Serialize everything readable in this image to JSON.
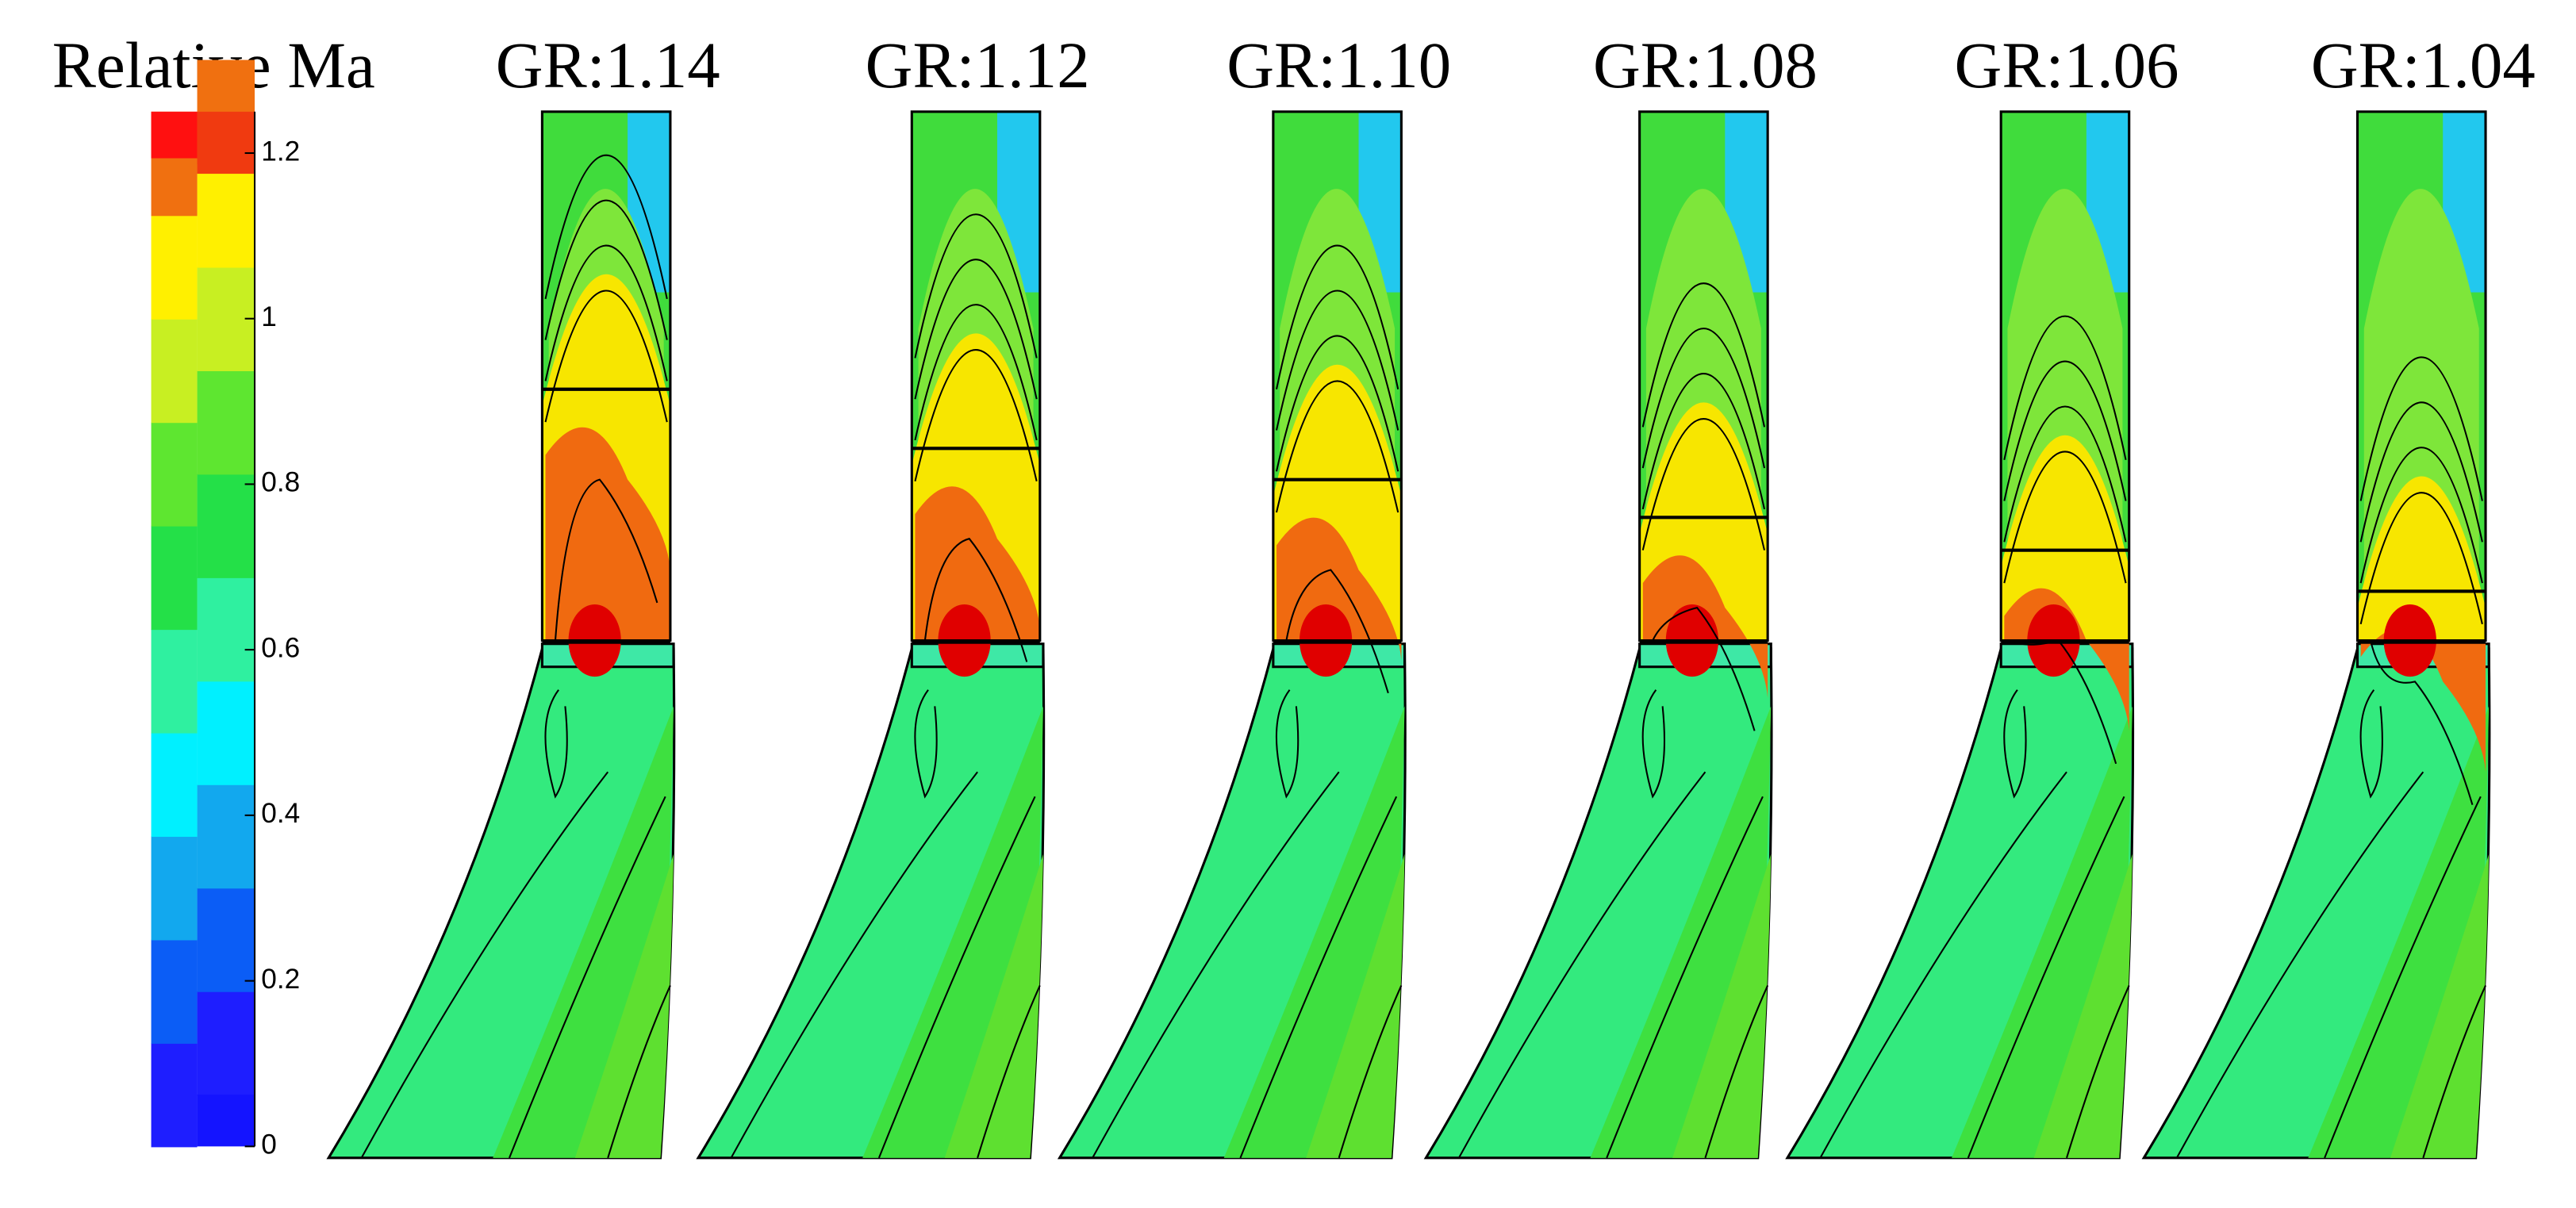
{
  "colorbar": {
    "title": "Relative Ma",
    "range": [
      0,
      1.25
    ],
    "ticks": [
      0,
      0.2,
      0.4,
      0.6,
      0.8,
      1,
      1.2
    ]
  },
  "panels": [
    {
      "title": "GR:1.14"
    },
    {
      "title": "GR:1.12"
    },
    {
      "title": "GR:1.10"
    },
    {
      "title": "GR:1.08"
    },
    {
      "title": "GR:1.06"
    },
    {
      "title": "GR:1.04"
    }
  ]
}
